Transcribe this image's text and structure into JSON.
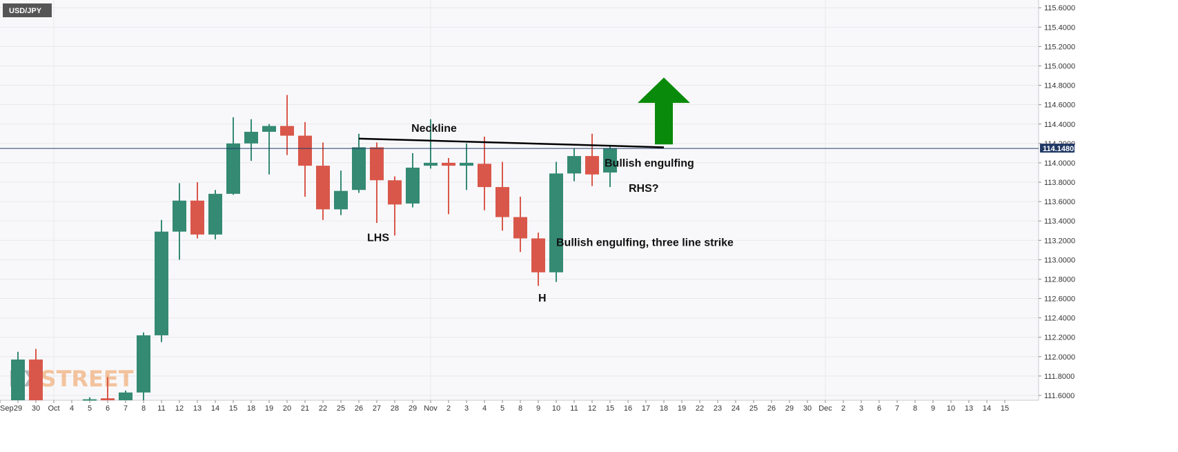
{
  "symbol": "USD/JPY",
  "current_price_label": "114.1480",
  "watermark": "FXSTREET",
  "colors": {
    "bull": "#348a73",
    "bear": "#d9574a",
    "arrow": "#0a8a0a",
    "neckline": "#000000",
    "price_line": "#1f3864",
    "grid": "#e8e8ec",
    "background": "#f8f8fa"
  },
  "chart_data": {
    "type": "candlestick",
    "x_tick_labels": [
      "Sep",
      "29",
      "30",
      "Oct",
      "4",
      "5",
      "6",
      "7",
      "8",
      "11",
      "12",
      "13",
      "14",
      "15",
      "18",
      "19",
      "20",
      "21",
      "22",
      "25",
      "26",
      "27",
      "28",
      "29",
      "Nov",
      "2",
      "3",
      "4",
      "5",
      "8",
      "9",
      "10",
      "11",
      "12",
      "15",
      "16",
      "17",
      "18",
      "19",
      "22",
      "23",
      "24",
      "25",
      "26",
      "29",
      "30",
      "Dec",
      "2",
      "3",
      "6",
      "7",
      "8",
      "9",
      "10",
      "13",
      "14",
      "15"
    ],
    "ylim": [
      111.55,
      115.68
    ],
    "y_ticks": [
      111.6,
      111.8,
      112.0,
      112.2,
      112.4,
      112.6,
      112.8,
      113.0,
      113.2,
      113.4,
      113.6,
      113.8,
      114.0,
      114.2,
      114.4,
      114.6,
      114.8,
      115.0,
      115.2,
      115.4,
      115.6
    ],
    "candles": [
      {
        "x": "29",
        "open": 111.55,
        "high": 112.05,
        "low": 111.55,
        "close": 111.97
      },
      {
        "x": "30",
        "open": 111.97,
        "high": 112.08,
        "low": 111.55,
        "close": 111.55
      },
      {
        "x": "5",
        "open": 111.56,
        "high": 111.58,
        "low": 111.55,
        "close": 111.56
      },
      {
        "x": "6",
        "open": 111.57,
        "high": 111.79,
        "low": 111.55,
        "close": 111.55
      },
      {
        "x": "7",
        "open": 111.55,
        "high": 111.65,
        "low": 111.55,
        "close": 111.63
      },
      {
        "x": "8",
        "open": 111.63,
        "high": 112.25,
        "low": 111.55,
        "close": 112.22
      },
      {
        "x": "11",
        "open": 112.22,
        "high": 113.41,
        "low": 112.15,
        "close": 113.29
      },
      {
        "x": "12",
        "open": 113.29,
        "high": 113.79,
        "low": 113.0,
        "close": 113.61
      },
      {
        "x": "13",
        "open": 113.61,
        "high": 113.8,
        "low": 113.22,
        "close": 113.26
      },
      {
        "x": "14",
        "open": 113.26,
        "high": 113.72,
        "low": 113.21,
        "close": 113.68
      },
      {
        "x": "15",
        "open": 113.68,
        "high": 114.47,
        "low": 113.67,
        "close": 114.2
      },
      {
        "x": "18",
        "open": 114.2,
        "high": 114.45,
        "low": 114.02,
        "close": 114.32
      },
      {
        "x": "19",
        "open": 114.32,
        "high": 114.4,
        "low": 113.88,
        "close": 114.38
      },
      {
        "x": "20",
        "open": 114.38,
        "high": 114.7,
        "low": 114.08,
        "close": 114.28
      },
      {
        "x": "21",
        "open": 114.28,
        "high": 114.42,
        "low": 113.65,
        "close": 113.97
      },
      {
        "x": "22",
        "open": 113.97,
        "high": 114.21,
        "low": 113.41,
        "close": 113.52
      },
      {
        "x": "25",
        "open": 113.52,
        "high": 113.92,
        "low": 113.46,
        "close": 113.71
      },
      {
        "x": "26",
        "open": 113.72,
        "high": 114.3,
        "low": 113.69,
        "close": 114.16
      },
      {
        "x": "27",
        "open": 114.16,
        "high": 114.21,
        "low": 113.38,
        "close": 113.82
      },
      {
        "x": "28",
        "open": 113.82,
        "high": 113.86,
        "low": 113.25,
        "close": 113.57
      },
      {
        "x": "29",
        "open": 113.58,
        "high": 114.1,
        "low": 113.54,
        "close": 113.95
      },
      {
        "x": "Nov",
        "open": 113.97,
        "high": 114.45,
        "low": 113.94,
        "close": 114.0
      },
      {
        "x": "2",
        "open": 114.0,
        "high": 114.05,
        "low": 113.47,
        "close": 113.97
      },
      {
        "x": "3",
        "open": 113.97,
        "high": 114.2,
        "low": 113.72,
        "close": 114.0
      },
      {
        "x": "4",
        "open": 113.99,
        "high": 114.27,
        "low": 113.51,
        "close": 113.75
      },
      {
        "x": "5",
        "open": 113.75,
        "high": 114.01,
        "low": 113.3,
        "close": 113.44
      },
      {
        "x": "8",
        "open": 113.44,
        "high": 113.65,
        "low": 113.08,
        "close": 113.22
      },
      {
        "x": "9",
        "open": 113.22,
        "high": 113.28,
        "low": 112.73,
        "close": 112.87
      },
      {
        "x": "10",
        "open": 112.87,
        "high": 114.01,
        "low": 112.77,
        "close": 113.89
      },
      {
        "x": "11",
        "open": 113.89,
        "high": 114.15,
        "low": 113.81,
        "close": 114.07
      },
      {
        "x": "12",
        "open": 114.07,
        "high": 114.3,
        "low": 113.76,
        "close": 113.88
      },
      {
        "x": "15",
        "open": 113.9,
        "high": 114.18,
        "low": 113.75,
        "close": 114.15
      }
    ],
    "annotations": [
      {
        "text": "Neckline",
        "x": "Nov",
        "y": 114.32
      },
      {
        "text": "Bullish engulfing",
        "x": "15",
        "y": 113.96
      },
      {
        "text": "RHS?",
        "x": "16",
        "y": 113.7
      },
      {
        "text": "LHS",
        "x": "27",
        "y": 113.19
      },
      {
        "text": "Bullish engulfing, three line strike",
        "x": "10",
        "y": 113.14
      },
      {
        "text": "H",
        "x": "9",
        "y": 112.57
      }
    ],
    "neckline": {
      "from": {
        "x": "26",
        "y": 114.25
      },
      "to": {
        "x": "18",
        "y": 114.16
      }
    },
    "arrow": {
      "x": "18",
      "base": 114.19,
      "tip": 114.88
    },
    "current_price": 114.148,
    "grid": true
  }
}
